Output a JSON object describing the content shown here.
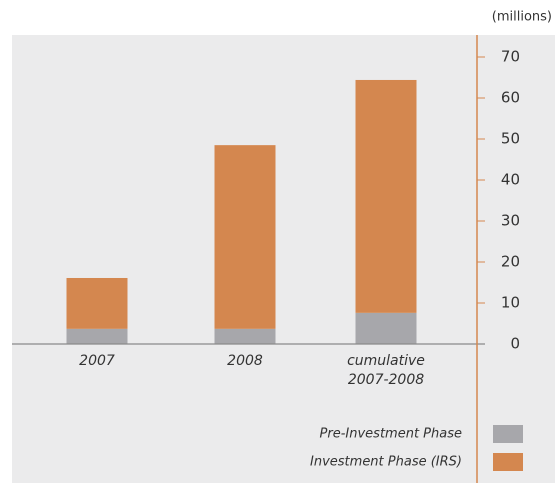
{
  "chart_data": {
    "type": "stacked-bar",
    "unit_label": "(millions)",
    "categories": [
      "2007",
      "2008",
      "cumulative 2007-2008"
    ],
    "series": [
      {
        "name": "Pre-Investment Phase",
        "color": "#a7a7ab",
        "values": [
          3.7,
          3.7,
          7.6
        ]
      },
      {
        "name": "Investment Phase (IRS)",
        "color": "#d4874f",
        "values": [
          12.4,
          44.8,
          56.8
        ]
      }
    ],
    "ylim": [
      0,
      70
    ],
    "yticks": [
      0,
      10,
      20,
      30,
      40,
      50,
      60,
      70
    ],
    "axis_color": "#d4874f"
  }
}
